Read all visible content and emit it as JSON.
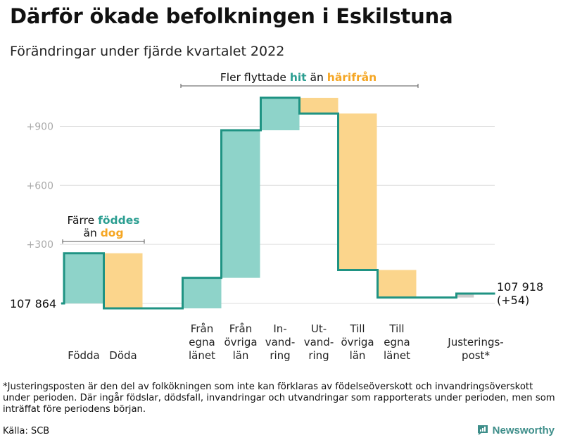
{
  "title": "Därför ökade befolkningen i Eskilstuna",
  "subtitle": "Förändringar under fjärde kvartalet 2022",
  "footnote": "*Justeringsposten är den del av folkökningen som inte kan förklaras av födelseöverskott och invandringsöverskott under perioden. Där ingår födslar, dödsfall, invandringar och utvandringar som rapporterats under perioden, men som inträffat före periodens början.",
  "source": "Källa: SCB",
  "brand": {
    "name": "Newsworthy",
    "logo_icon": "bar-chart-speech-bubble-icon"
  },
  "colors": {
    "increase": "#8ed3c9",
    "decrease": "#fbd58c",
    "line": "#1f9383",
    "adjustment": "#cccccc",
    "grid": "#dddddd",
    "tick": "#aaaaaa"
  },
  "annotations": {
    "birth_death": {
      "line1": "Färre ",
      "line1_highlight": "föddes",
      "line2": "än ",
      "line2_highlight": "dog"
    },
    "migration": {
      "prefix": "Fler flyttade ",
      "highlight1": "hit",
      "middle": " än ",
      "highlight2": "härifrån"
    }
  },
  "chart_data": {
    "type": "waterfall",
    "title": "Därför ökade befolkningen i Eskilstuna",
    "subtitle": "Förändringar under fjärde kvartalet 2022",
    "start_label": "107 864",
    "end_label_line1": "107 918",
    "end_label_line2": "(+54)",
    "start_value": 107864,
    "end_value": 107918,
    "y_axis": {
      "unit": "change from start",
      "ticks": [
        300,
        600,
        900
      ],
      "tick_labels": [
        "+300",
        "+600",
        "+900"
      ],
      "ylim": [
        -40,
        1100
      ],
      "grid": true
    },
    "steps": [
      {
        "label_lines": [
          "Födda"
        ],
        "change": 255,
        "kind": "increase"
      },
      {
        "label_lines": [
          "Döda"
        ],
        "change": -280,
        "kind": "decrease"
      },
      {
        "label_lines": [
          "Från",
          "egna",
          "länet"
        ],
        "change": 155,
        "kind": "increase"
      },
      {
        "label_lines": [
          "Från",
          "övriga",
          "län"
        ],
        "change": 750,
        "kind": "increase"
      },
      {
        "label_lines": [
          "In-",
          "vand-",
          "ring"
        ],
        "change": 165,
        "kind": "increase"
      },
      {
        "label_lines": [
          "Ut-",
          "vand-",
          "ring"
        ],
        "change": -80,
        "kind": "decrease"
      },
      {
        "label_lines": [
          "Till",
          "övriga",
          "län"
        ],
        "change": -795,
        "kind": "decrease"
      },
      {
        "label_lines": [
          "Till",
          "egna",
          "länet"
        ],
        "change": -140,
        "kind": "decrease"
      },
      {
        "label_lines": [
          "Justerings-",
          "post*"
        ],
        "change": 20,
        "kind": "adjustment"
      }
    ]
  }
}
